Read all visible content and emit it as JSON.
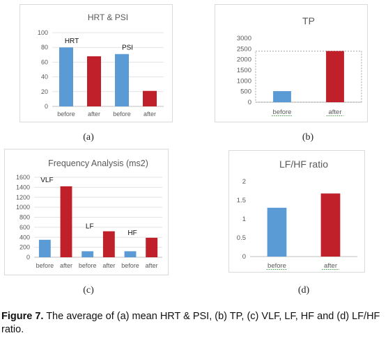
{
  "charts": [
    {
      "id": "a",
      "chart_data": {
        "type": "bar",
        "title": "HRT & PSI",
        "categories": [
          "before",
          "after",
          "before",
          "after"
        ],
        "values": [
          80,
          68,
          71,
          21
        ],
        "colors": [
          "#5b9bd5",
          "#c0202a",
          "#5b9bd5",
          "#c0202a"
        ],
        "ylim": [
          0,
          100
        ],
        "yticks": [
          0,
          20,
          40,
          60,
          80,
          100
        ],
        "grid": true,
        "annotations": [
          {
            "text": "HRT",
            "at_category": 0
          },
          {
            "text": "PSI",
            "at_category": 2
          }
        ]
      }
    },
    {
      "id": "b",
      "chart_data": {
        "type": "bar",
        "title": "TP",
        "categories": [
          "before",
          "after"
        ],
        "values": [
          520,
          2400
        ],
        "colors": [
          "#5b9bd5",
          "#c0202a"
        ],
        "ylim": [
          0,
          3000
        ],
        "yticks": [
          0,
          500,
          1000,
          1500,
          2000,
          2500,
          3000
        ],
        "grid": false,
        "annotations": []
      }
    },
    {
      "id": "c",
      "chart_data": {
        "type": "bar",
        "title": "Frequency Analysis (ms2)",
        "categories": [
          "before",
          "after",
          "before",
          "after",
          "before",
          "after"
        ],
        "values": [
          350,
          1420,
          120,
          520,
          120,
          390
        ],
        "colors": [
          "#5b9bd5",
          "#c0202a",
          "#5b9bd5",
          "#c0202a",
          "#5b9bd5",
          "#c0202a"
        ],
        "ylim": [
          0,
          1600
        ],
        "yticks": [
          0,
          200,
          400,
          600,
          800,
          1000,
          1200,
          1400,
          1600
        ],
        "grid": true,
        "annotations": [
          {
            "text": "VLF",
            "at_category": 0
          },
          {
            "text": "LF",
            "at_category": 2
          },
          {
            "text": "HF",
            "at_category": 4
          }
        ]
      }
    },
    {
      "id": "d",
      "chart_data": {
        "type": "bar",
        "title": "LF/HF ratio",
        "categories": [
          "before",
          "after"
        ],
        "values": [
          1.3,
          1.68
        ],
        "colors": [
          "#5b9bd5",
          "#c0202a"
        ],
        "ylim": [
          0,
          2
        ],
        "yticks": [
          "0",
          "0.5",
          "1",
          "1.5",
          "2"
        ],
        "grid": false,
        "annotations": []
      }
    }
  ],
  "sublabels": {
    "a": "(a)",
    "b": "(b)",
    "c": "(c)",
    "d": "(d)"
  },
  "caption": {
    "label": "Figure 7.",
    "text": " The average of (a) mean HRT & PSI, (b) TP, (c) VLF, LF, HF and (d) LF/HF ratio."
  }
}
